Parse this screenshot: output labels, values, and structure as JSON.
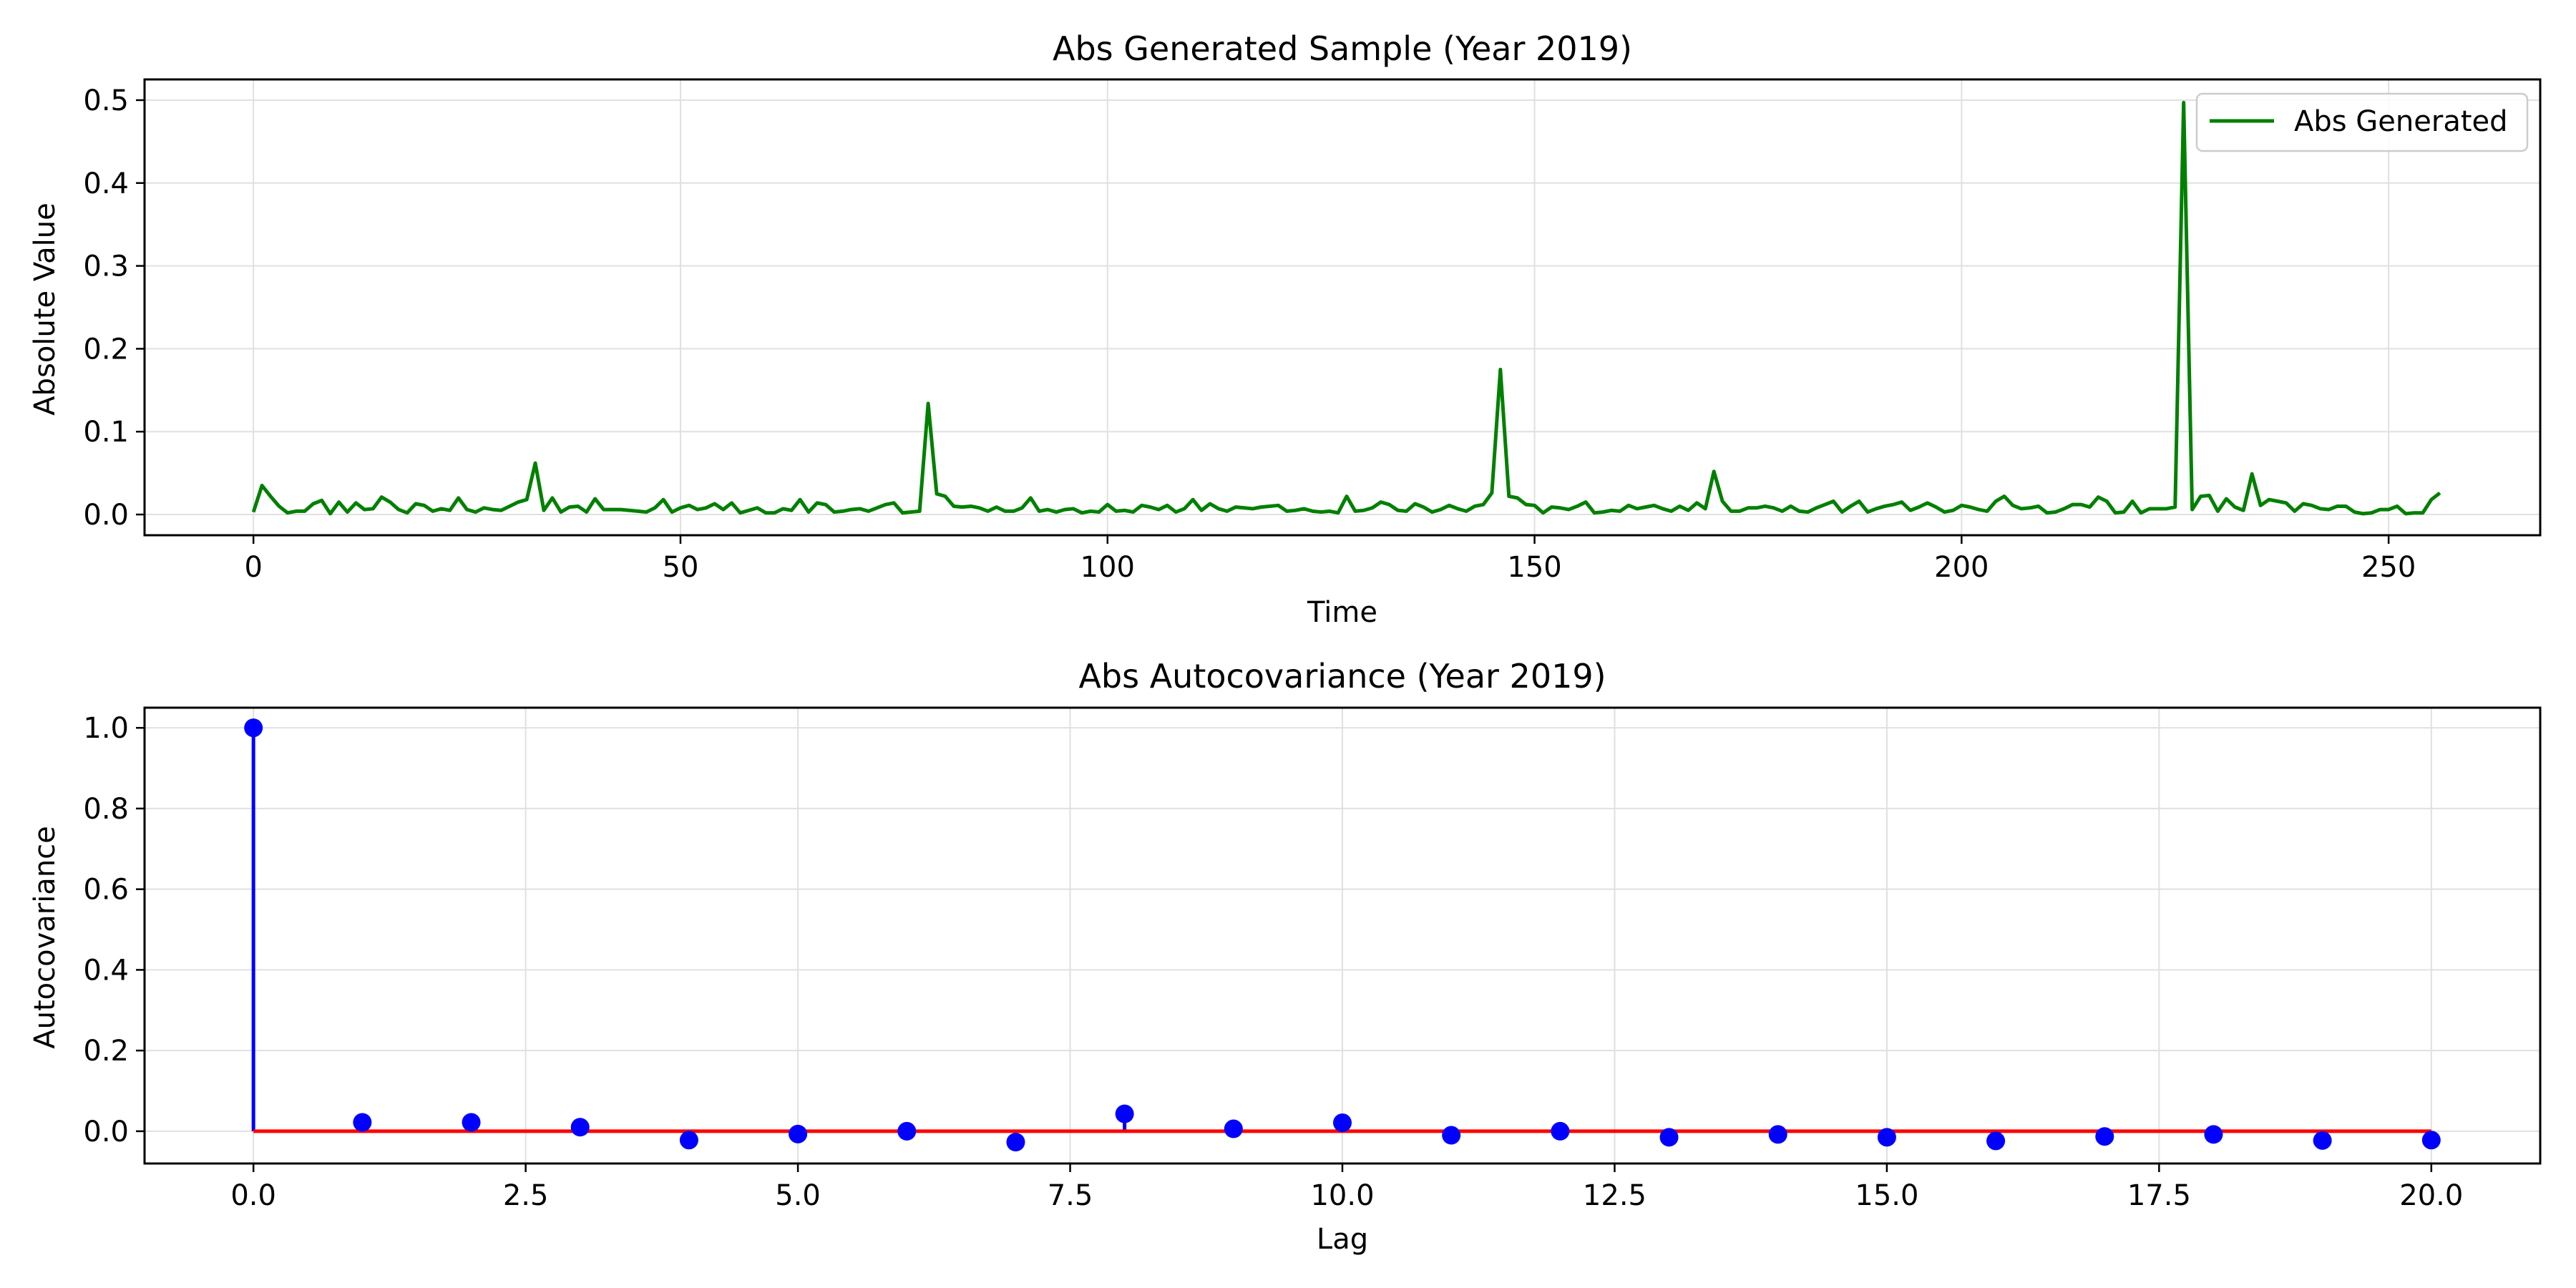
{
  "chart_data": [
    {
      "type": "line",
      "title": "Abs Generated Sample (Year 2019)",
      "xlabel": "Time",
      "ylabel": "Absolute Value",
      "xlim": [
        -12.75,
        267.75
      ],
      "ylim": [
        -0.025,
        0.525
      ],
      "xticks": [
        0,
        50,
        100,
        150,
        200,
        250
      ],
      "yticks": [
        0.0,
        0.1,
        0.2,
        0.3,
        0.4,
        0.5
      ],
      "xtick_labels": [
        "0",
        "50",
        "100",
        "150",
        "200",
        "250"
      ],
      "ytick_labels": [
        "0.0",
        "0.1",
        "0.2",
        "0.3",
        "0.4",
        "0.5"
      ],
      "grid": true,
      "legend_position": "upper right",
      "series": [
        {
          "name": "Abs Generated",
          "color": "#008000",
          "x_start": 0,
          "x_step": 1,
          "values": [
            0.003,
            0.035,
            0.022,
            0.01,
            0.002,
            0.004,
            0.004,
            0.013,
            0.017,
            0.001,
            0.015,
            0.003,
            0.014,
            0.006,
            0.007,
            0.021,
            0.015,
            0.006,
            0.002,
            0.013,
            0.011,
            0.004,
            0.007,
            0.005,
            0.02,
            0.006,
            0.003,
            0.008,
            0.006,
            0.005,
            0.01,
            0.015,
            0.018,
            0.062,
            0.005,
            0.02,
            0.003,
            0.009,
            0.01,
            0.003,
            0.019,
            0.006,
            0.006,
            0.006,
            0.005,
            0.004,
            0.003,
            0.008,
            0.018,
            0.003,
            0.008,
            0.011,
            0.006,
            0.008,
            0.013,
            0.006,
            0.014,
            0.002,
            0.005,
            0.008,
            0.002,
            0.002,
            0.007,
            0.005,
            0.018,
            0.003,
            0.014,
            0.012,
            0.003,
            0.004,
            0.006,
            0.007,
            0.004,
            0.008,
            0.012,
            0.014,
            0.002,
            0.003,
            0.004,
            0.134,
            0.025,
            0.022,
            0.01,
            0.009,
            0.01,
            0.008,
            0.004,
            0.009,
            0.004,
            0.004,
            0.008,
            0.02,
            0.004,
            0.006,
            0.003,
            0.006,
            0.007,
            0.002,
            0.004,
            0.003,
            0.012,
            0.004,
            0.005,
            0.003,
            0.011,
            0.009,
            0.006,
            0.011,
            0.003,
            0.007,
            0.018,
            0.005,
            0.013,
            0.007,
            0.004,
            0.009,
            0.008,
            0.007,
            0.009,
            0.01,
            0.011,
            0.004,
            0.005,
            0.007,
            0.004,
            0.003,
            0.004,
            0.002,
            0.022,
            0.004,
            0.005,
            0.008,
            0.015,
            0.012,
            0.005,
            0.004,
            0.013,
            0.009,
            0.003,
            0.006,
            0.011,
            0.007,
            0.004,
            0.01,
            0.012,
            0.026,
            0.175,
            0.022,
            0.02,
            0.012,
            0.011,
            0.002,
            0.009,
            0.008,
            0.006,
            0.01,
            0.015,
            0.002,
            0.003,
            0.005,
            0.004,
            0.011,
            0.007,
            0.009,
            0.011,
            0.007,
            0.004,
            0.01,
            0.005,
            0.014,
            0.007,
            0.052,
            0.016,
            0.004,
            0.004,
            0.008,
            0.008,
            0.01,
            0.008,
            0.004,
            0.01,
            0.004,
            0.003,
            0.008,
            0.012,
            0.016,
            0.003,
            0.01,
            0.016,
            0.003,
            0.007,
            0.01,
            0.012,
            0.015,
            0.005,
            0.009,
            0.014,
            0.009,
            0.003,
            0.005,
            0.011,
            0.009,
            0.006,
            0.004,
            0.016,
            0.022,
            0.011,
            0.007,
            0.008,
            0.01,
            0.002,
            0.003,
            0.007,
            0.012,
            0.012,
            0.009,
            0.021,
            0.016,
            0.002,
            0.003,
            0.016,
            0.002,
            0.007,
            0.007,
            0.007,
            0.009,
            0.497,
            0.006,
            0.022,
            0.023,
            0.004,
            0.019,
            0.009,
            0.005,
            0.049,
            0.011,
            0.018,
            0.016,
            0.014,
            0.004,
            0.013,
            0.011,
            0.007,
            0.006,
            0.01,
            0.01,
            0.003,
            0.001,
            0.002,
            0.006,
            0.006,
            0.01,
            0.001,
            0.002,
            0.002,
            0.018,
            0.026
          ]
        }
      ]
    },
    {
      "type": "stem",
      "title": "Abs Autocovariance (Year 2019)",
      "xlabel": "Lag",
      "ylabel": "Autocovariance",
      "xlim": [
        -1.0,
        21.0
      ],
      "ylim": [
        -0.08,
        1.05
      ],
      "xticks": [
        0.0,
        2.5,
        5.0,
        7.5,
        10.0,
        12.5,
        15.0,
        17.5,
        20.0
      ],
      "yticks": [
        0.0,
        0.2,
        0.4,
        0.6,
        0.8,
        1.0
      ],
      "xtick_labels": [
        "0.0",
        "2.5",
        "5.0",
        "7.5",
        "10.0",
        "12.5",
        "15.0",
        "17.5",
        "20.0"
      ],
      "ytick_labels": [
        "0.0",
        "0.2",
        "0.4",
        "0.6",
        "0.8",
        "1.0"
      ],
      "grid": true,
      "stem_color": "#0000ff",
      "baseline_color": "#ff0000",
      "lags": [
        0,
        1,
        2,
        3,
        4,
        5,
        6,
        7,
        8,
        9,
        10,
        11,
        12,
        13,
        14,
        15,
        16,
        17,
        18,
        19,
        20
      ],
      "values": [
        1.0,
        0.022,
        0.022,
        0.01,
        -0.022,
        -0.007,
        0.0,
        -0.027,
        0.043,
        0.006,
        0.021,
        -0.01,
        0.0,
        -0.015,
        -0.008,
        -0.015,
        -0.024,
        -0.013,
        -0.008,
        -0.023,
        -0.022
      ]
    }
  ]
}
